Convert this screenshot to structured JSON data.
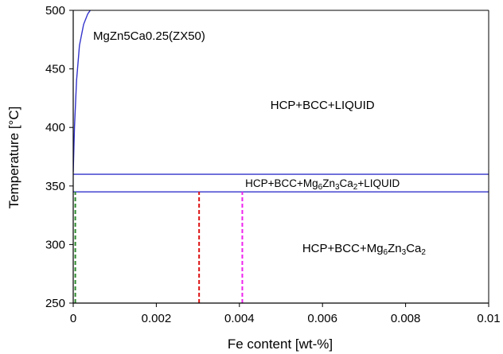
{
  "chart_data": {
    "type": "line",
    "title": "MgZn5Ca0.25(ZX50)",
    "xlabel": "Fe content [wt-%]",
    "ylabel": "Temperature [°C]",
    "xlim": [
      0,
      0.01
    ],
    "ylim": [
      250,
      500
    ],
    "x_ticks": [
      "0",
      "0.002",
      "0.004",
      "0.006",
      "0.008",
      "0.01"
    ],
    "y_ticks": [
      "250",
      "300",
      "350",
      "400",
      "450",
      "500"
    ],
    "colors": {
      "phase_boundary": "#3333cc",
      "green_marker": "#2e8b2e",
      "red_marker": "#dd1111",
      "magenta_marker": "#ee22ee",
      "axis": "#000000"
    },
    "series": [
      {
        "role": "liquidus-curve",
        "x": [
          0.0,
          3e-05,
          8e-05,
          0.00015,
          0.00025,
          0.00035,
          0.00045
        ],
        "y": [
          362,
          400,
          440,
          470,
          488,
          497,
          502
        ]
      },
      {
        "role": "upper-isotherm",
        "x": [
          0.0,
          0.01
        ],
        "y": [
          360,
          360
        ]
      },
      {
        "role": "lower-isotherm",
        "x": [
          0.0,
          0.01
        ],
        "y": [
          345,
          345
        ]
      },
      {
        "role": "left-boundary",
        "x": [
          0.0,
          0.0
        ],
        "y": [
          250,
          360
        ]
      }
    ],
    "vertical_markers": [
      {
        "x": 5e-05,
        "y": [
          250,
          345
        ],
        "color": "green_marker",
        "dashed": true
      },
      {
        "x": 0.00303,
        "y": [
          250,
          345
        ],
        "color": "red_marker",
        "dashed": true
      },
      {
        "x": 0.00407,
        "y": [
          250,
          345
        ],
        "color": "magenta_marker",
        "dashed": true
      }
    ],
    "annotations": [
      {
        "text": "HCP+BCC+LIQUID",
        "x": 0.006,
        "y": 419
      },
      {
        "x": 0.006,
        "y": 352.5,
        "size": "small",
        "parts": [
          {
            "t": "HCP+BCC+Mg"
          },
          {
            "t": "6",
            "sub": true
          },
          {
            "t": "Zn"
          },
          {
            "t": "3",
            "sub": true
          },
          {
            "t": "Ca"
          },
          {
            "t": "2",
            "sub": true
          },
          {
            "t": "+LIQUID"
          }
        ]
      },
      {
        "x": 0.007,
        "y": 297,
        "parts": [
          {
            "t": "HCP+BCC+Mg"
          },
          {
            "t": "6",
            "sub": true
          },
          {
            "t": "Zn"
          },
          {
            "t": "3",
            "sub": true
          },
          {
            "t": "Ca"
          },
          {
            "t": "2",
            "sub": true
          }
        ]
      }
    ]
  }
}
